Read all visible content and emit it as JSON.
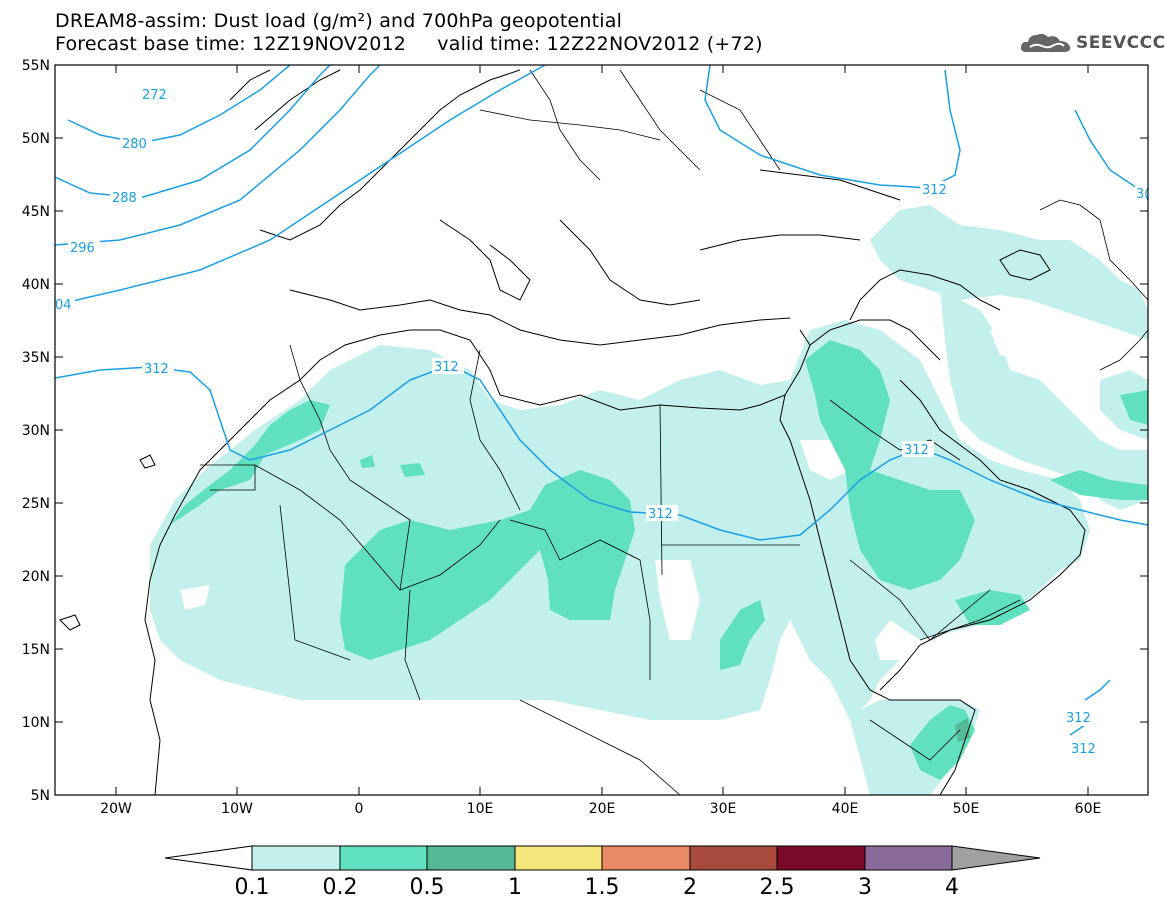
{
  "header": {
    "title_line1": "DREAM8-assim: Dust load (g/m²) and 700hPa geopotential",
    "title_line2": "Forecast base time: 12Z19NOV2012     valid time: 12Z22NOV2012 (+72)",
    "logo_text": "SEEVCCC",
    "logo_icon": "cloud-icon"
  },
  "axes": {
    "lat_labels": [
      "55N",
      "50N",
      "45N",
      "40N",
      "35N",
      "30N",
      "25N",
      "20N",
      "15N",
      "10N",
      "5N"
    ],
    "lon_labels": [
      "20W",
      "10W",
      "0",
      "10E",
      "20E",
      "30E",
      "40E",
      "50E",
      "60E"
    ]
  },
  "contours": {
    "labels": [
      "272",
      "280",
      "288",
      "296",
      "04",
      "312",
      "312",
      "312",
      "312",
      "312",
      "3(",
      "312",
      "312"
    ]
  },
  "colorbar": {
    "colors": [
      "#ffffff",
      "#c3f0ec",
      "#5fe0be",
      "#55b896",
      "#f4e67a",
      "#ea8a64",
      "#a84a3c",
      "#7a0a2a",
      "#8a6a9a",
      "#a0a0a0"
    ],
    "labels": [
      "0.1",
      "0.2",
      "0.5",
      "1",
      "1.5",
      "2",
      "2.5",
      "3",
      "4"
    ]
  },
  "colors": {
    "contour": "#1aa0e6",
    "dust_low": "#c3f0ec",
    "dust_mid": "#5fe0be",
    "dust_high": "#55b896"
  }
}
